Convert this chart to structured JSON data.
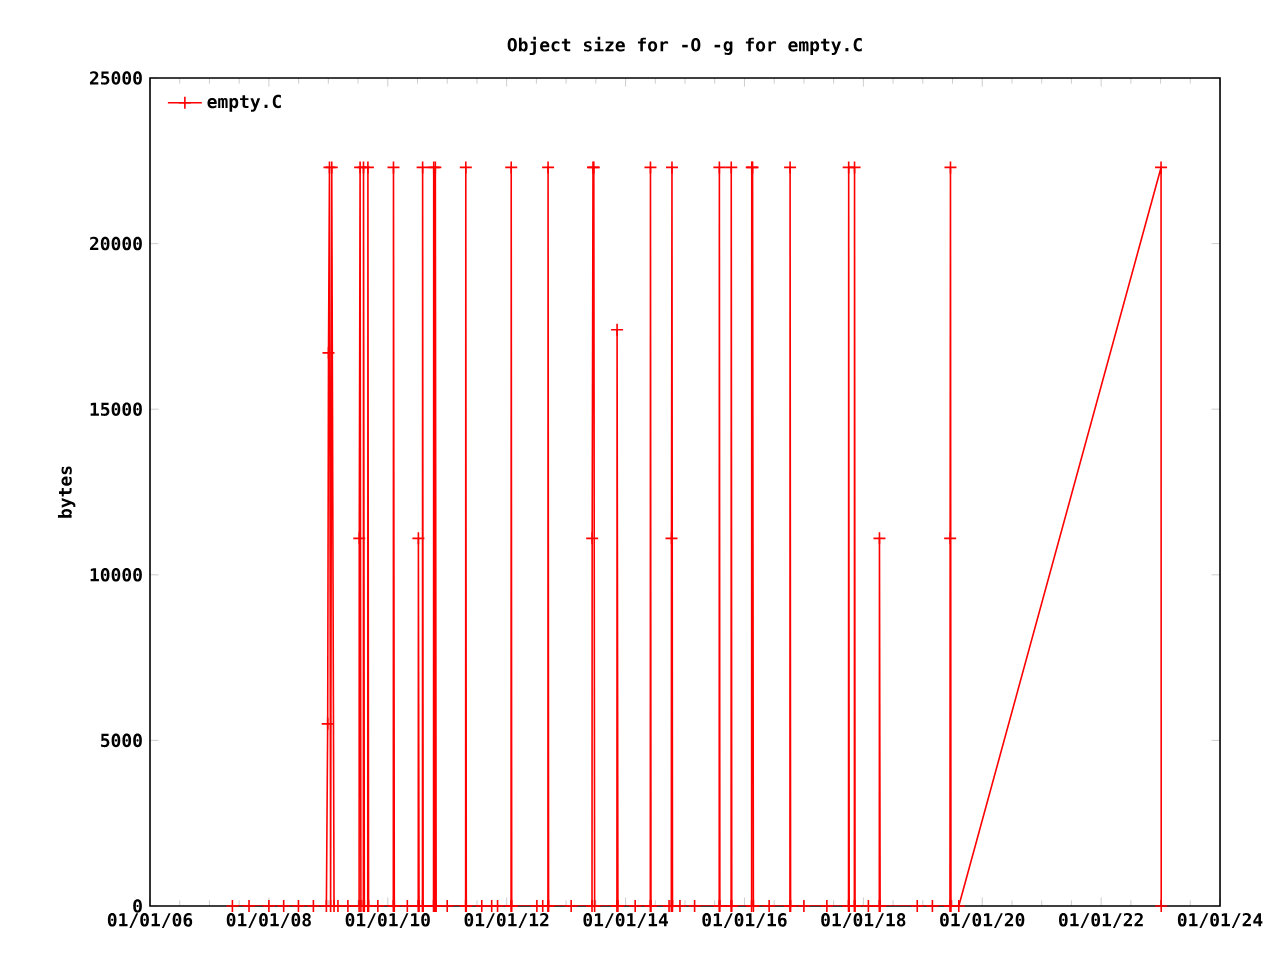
{
  "chart_data": {
    "type": "line",
    "title": "Object size for -O -g for empty.C",
    "ylabel": "bytes",
    "xlim": [
      "2006-01-01",
      "2024-01-01"
    ],
    "xticks": [
      {
        "value": "2006-01-01",
        "label": "01/01/06"
      },
      {
        "value": "2008-01-01",
        "label": "01/01/08"
      },
      {
        "value": "2010-01-01",
        "label": "01/01/10"
      },
      {
        "value": "2012-01-01",
        "label": "01/01/12"
      },
      {
        "value": "2014-01-01",
        "label": "01/01/14"
      },
      {
        "value": "2016-01-01",
        "label": "01/01/16"
      },
      {
        "value": "2018-01-01",
        "label": "01/01/18"
      },
      {
        "value": "2020-01-01",
        "label": "01/01/20"
      },
      {
        "value": "2022-01-01",
        "label": "01/01/22"
      },
      {
        "value": "2024-01-01",
        "label": "01/01/24"
      }
    ],
    "ylim": [
      0,
      25000
    ],
    "yticks": [
      0,
      5000,
      10000,
      15000,
      20000,
      25000
    ],
    "legend": "top left",
    "marker": "cross",
    "line_style": "solid",
    "series": [
      {
        "name": "empty.C",
        "color": "#ff0000",
        "x": [
          "2007-05-22",
          "2007-09-01",
          "2008-01-01",
          "2008-04-01",
          "2008-07-01",
          "2008-10-01",
          "2008-12-20",
          "2008-12-28",
          "2009-01-02",
          "2009-01-08",
          "2009-01-15",
          "2009-01-22",
          "2009-02-05",
          "2009-03-01",
          "2009-05-01",
          "2009-07-09",
          "2009-07-10",
          "2009-07-15",
          "2009-07-20",
          "2009-08-04",
          "2009-08-05",
          "2009-08-10",
          "2009-08-31",
          "2009-09-01",
          "2009-09-05",
          "2009-11-01",
          "2010-02-04",
          "2010-02-05",
          "2010-02-10",
          "2010-05-01",
          "2010-07-07",
          "2010-07-08",
          "2010-07-12",
          "2010-08-02",
          "2010-08-03",
          "2010-08-06",
          "2010-10-09",
          "2010-10-10",
          "2010-10-15",
          "2010-10-19",
          "2010-10-20",
          "2010-10-25",
          "2011-01-01",
          "2011-04-24",
          "2011-04-25",
          "2011-04-28",
          "2011-08-01",
          "2011-10-01",
          "2011-11-06",
          "2012-01-28",
          "2012-01-29",
          "2012-02-01",
          "2012-07-05",
          "2012-08-10",
          "2012-09-11",
          "2012-09-12",
          "2012-09-15",
          "2013-02-01",
          "2013-06-09",
          "2013-06-10",
          "2013-06-15",
          "2013-06-20",
          "2013-06-25",
          "2013-11-09",
          "2013-11-10",
          "2013-11-15",
          "2014-03-01",
          "2014-06-02",
          "2014-06-03",
          "2014-06-06",
          "2014-09-25",
          "2014-10-09",
          "2014-10-10",
          "2014-10-13",
          "2014-10-16",
          "2014-12-01",
          "2015-03-01",
          "2015-07-30",
          "2015-07-31",
          "2015-08-03",
          "2015-10-11",
          "2015-10-12",
          "2015-10-15",
          "2016-02-14",
          "2016-02-15",
          "2016-02-20",
          "2016-02-25",
          "2016-06-01",
          "2016-10-07",
          "2016-10-08",
          "2016-10-11",
          "2017-01-01",
          "2017-05-22",
          "2017-10-02",
          "2017-10-03",
          "2017-10-06",
          "2017-11-07",
          "2017-11-08",
          "2017-11-11",
          "2018-02-01",
          "2018-04-09",
          "2018-04-10",
          "2018-04-14",
          "2018-11-28",
          "2019-03-01",
          "2019-06-17",
          "2019-06-18",
          "2019-06-20",
          "2019-06-23",
          "2019-08-10",
          "2023-01-04",
          "2023-01-05"
        ],
        "values": [
          0,
          0,
          0,
          0,
          0,
          0,
          0,
          5500,
          16700,
          22300,
          0,
          22300,
          0,
          0,
          0,
          0,
          11100,
          22300,
          0,
          0,
          22300,
          0,
          0,
          22300,
          0,
          0,
          0,
          22300,
          0,
          0,
          0,
          11100,
          0,
          0,
          22300,
          0,
          0,
          22300,
          0,
          0,
          22300,
          0,
          0,
          0,
          22300,
          0,
          0,
          0,
          0,
          0,
          22300,
          0,
          0,
          0,
          0,
          22300,
          0,
          0,
          0,
          11100,
          22300,
          22300,
          0,
          0,
          17400,
          0,
          0,
          0,
          22300,
          0,
          0,
          0,
          11100,
          22300,
          0,
          0,
          0,
          0,
          22300,
          0,
          0,
          22300,
          0,
          0,
          22300,
          22300,
          0,
          0,
          0,
          22300,
          0,
          0,
          0,
          0,
          22300,
          0,
          0,
          22300,
          0,
          0,
          0,
          11100,
          0,
          0,
          0,
          0,
          11100,
          22300,
          0,
          0,
          22300,
          0
        ]
      }
    ]
  }
}
